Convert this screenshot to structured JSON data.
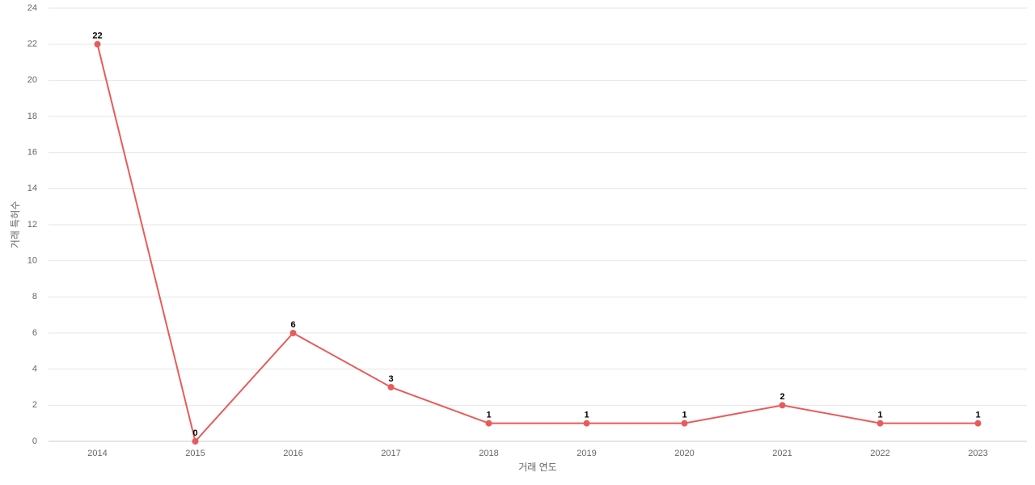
{
  "chart_data": {
    "type": "line",
    "x_label": "거래 연도",
    "y_label": "거래 특허수",
    "categories": [
      "2014",
      "2015",
      "2016",
      "2017",
      "2018",
      "2019",
      "2020",
      "2021",
      "2022",
      "2023"
    ],
    "values": [
      22,
      0,
      6,
      3,
      1,
      1,
      1,
      2,
      1,
      1
    ],
    "color": "#e85b5b",
    "ylim": [
      0,
      24
    ],
    "yticks": [
      0,
      2,
      4,
      6,
      8,
      10,
      12,
      14,
      16,
      18,
      20,
      22,
      24
    ],
    "grid": true,
    "data_labels": true
  }
}
